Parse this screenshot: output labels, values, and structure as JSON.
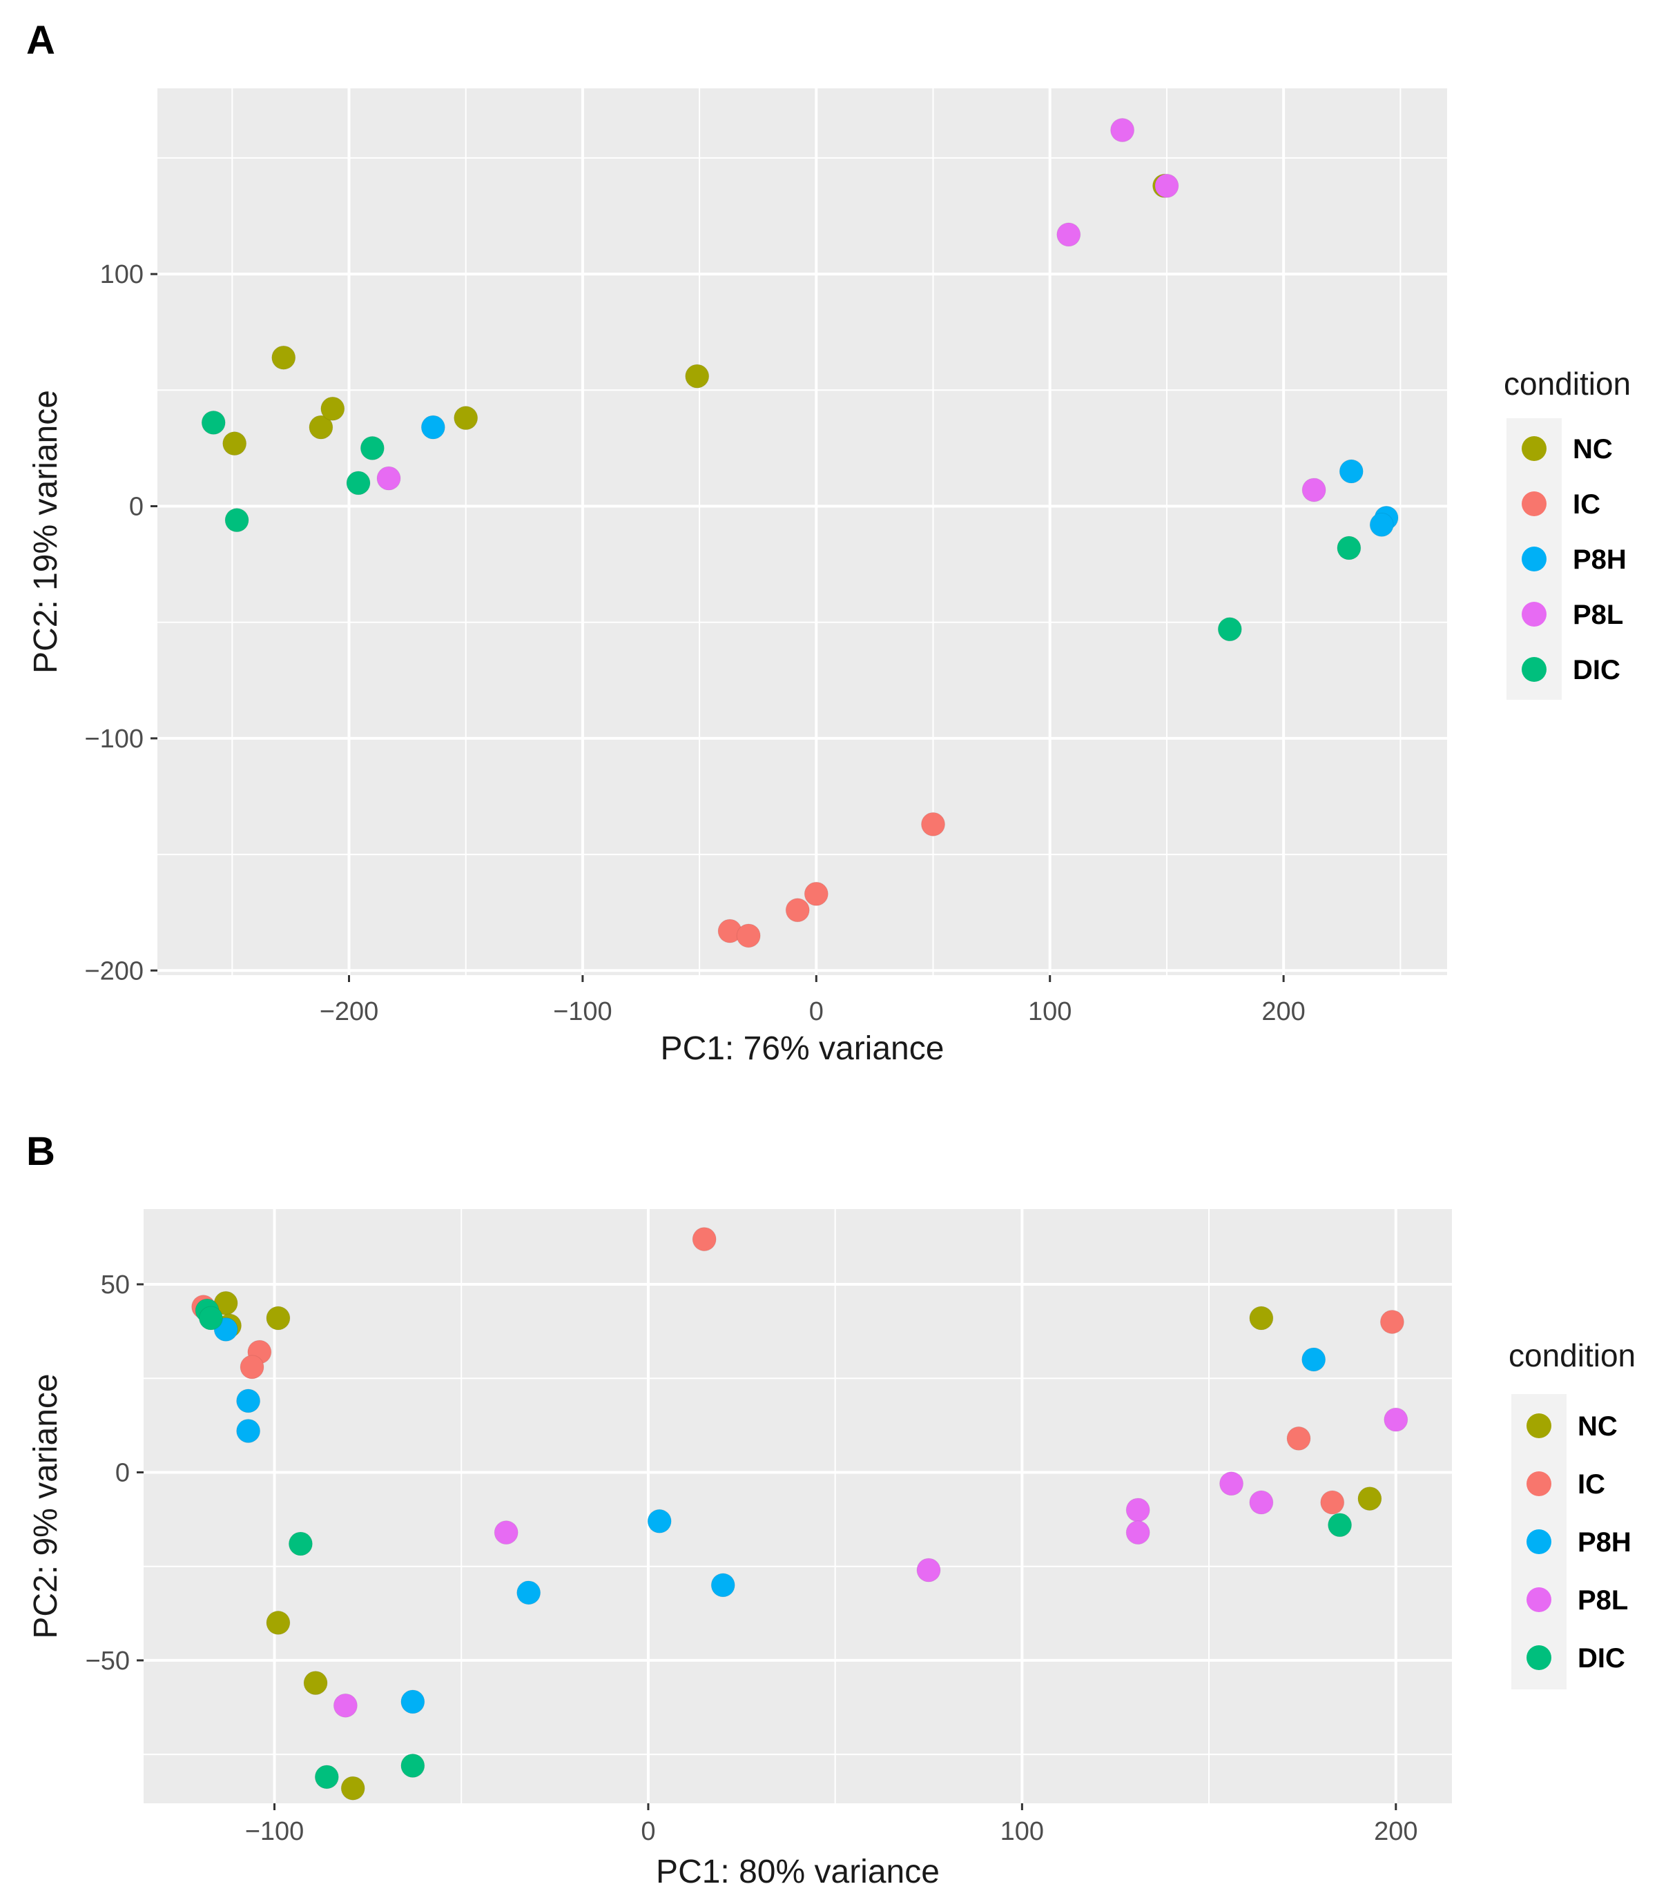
{
  "chart_data": [
    {
      "type": "scatter",
      "panel_label": "A",
      "xlabel": "PC1: 76% variance",
      "ylabel": "PC2: 19% variance",
      "xlim": [
        -282,
        270
      ],
      "ylim": [
        -202,
        180
      ],
      "xticks": [
        -200,
        -100,
        0,
        100,
        200
      ],
      "xtick_labels": [
        "−200",
        "−100",
        "0",
        "100",
        "200"
      ],
      "yticks": [
        -200,
        -100,
        0,
        100
      ],
      "ytick_labels": [
        "−200",
        "−100",
        "0",
        "100"
      ],
      "grid": true,
      "legend": {
        "title": "condition",
        "position": "right"
      },
      "series": [
        {
          "name": "NC",
          "color": "#A3A500",
          "points": [
            [
              -249,
              27
            ],
            [
              -228,
              64
            ],
            [
              -212,
              34
            ],
            [
              -207,
              42
            ],
            [
              -150,
              38
            ],
            [
              -51,
              56
            ],
            [
              149,
              138
            ]
          ]
        },
        {
          "name": "IC",
          "color": "#F8766D",
          "points": [
            [
              50,
              -137
            ],
            [
              0,
              -167
            ],
            [
              -8,
              -174
            ],
            [
              -37,
              -183
            ],
            [
              -29,
              -185
            ]
          ]
        },
        {
          "name": "P8H",
          "color": "#00B0F6",
          "points": [
            [
              -164,
              34
            ],
            [
              229,
              15
            ],
            [
              244,
              -5
            ],
            [
              242,
              -8
            ]
          ]
        },
        {
          "name": "P8L",
          "color": "#E76BF3",
          "points": [
            [
              131,
              162
            ],
            [
              150,
              138
            ],
            [
              108,
              117
            ],
            [
              -183,
              12
            ],
            [
              213,
              7
            ]
          ]
        },
        {
          "name": "DIC",
          "color": "#00BF7D",
          "points": [
            [
              -258,
              36
            ],
            [
              -248,
              -6
            ],
            [
              -190,
              25
            ],
            [
              -196,
              10
            ],
            [
              228,
              -18
            ],
            [
              177,
              -53
            ]
          ]
        }
      ]
    },
    {
      "type": "scatter",
      "panel_label": "B",
      "xlabel": "PC1: 80% variance",
      "ylabel": "PC2: 9% variance",
      "xlim": [
        -135,
        215
      ],
      "ylim": [
        -88,
        70
      ],
      "xticks": [
        -100,
        0,
        100,
        200
      ],
      "xtick_labels": [
        "−100",
        "0",
        "100",
        "200"
      ],
      "yticks": [
        -50,
        0,
        50
      ],
      "ytick_labels": [
        "−50",
        "0",
        "50"
      ],
      "grid": true,
      "legend": {
        "title": "condition",
        "position": "right"
      },
      "series": [
        {
          "name": "NC",
          "color": "#A3A500",
          "points": [
            [
              -113,
              45
            ],
            [
              -112,
              39
            ],
            [
              -99,
              41
            ],
            [
              -99,
              -40
            ],
            [
              -89,
              -56
            ],
            [
              -79,
              -84
            ],
            [
              164,
              41
            ],
            [
              193,
              -7
            ]
          ]
        },
        {
          "name": "IC",
          "color": "#F8766D",
          "points": [
            [
              -119,
              44
            ],
            [
              -104,
              32
            ],
            [
              -106,
              28
            ],
            [
              15,
              62
            ],
            [
              199,
              40
            ],
            [
              174,
              9
            ],
            [
              183,
              -8
            ]
          ]
        },
        {
          "name": "P8H",
          "color": "#00B0F6",
          "points": [
            [
              -113,
              38
            ],
            [
              -107,
              19
            ],
            [
              -107,
              11
            ],
            [
              3,
              -13
            ],
            [
              -32,
              -32
            ],
            [
              20,
              -30
            ],
            [
              -63,
              -61
            ],
            [
              178,
              30
            ]
          ]
        },
        {
          "name": "P8L",
          "color": "#E76BF3",
          "points": [
            [
              -38,
              -16
            ],
            [
              -81,
              -62
            ],
            [
              75,
              -26
            ],
            [
              131,
              -10
            ],
            [
              131,
              -16
            ],
            [
              156,
              -3
            ],
            [
              164,
              -8
            ],
            [
              200,
              14
            ]
          ]
        },
        {
          "name": "DIC",
          "color": "#00BF7D",
          "points": [
            [
              -118,
              43
            ],
            [
              -117,
              41
            ],
            [
              -93,
              -19
            ],
            [
              -86,
              -81
            ],
            [
              -63,
              -78
            ],
            [
              185,
              -14
            ]
          ]
        }
      ]
    }
  ]
}
